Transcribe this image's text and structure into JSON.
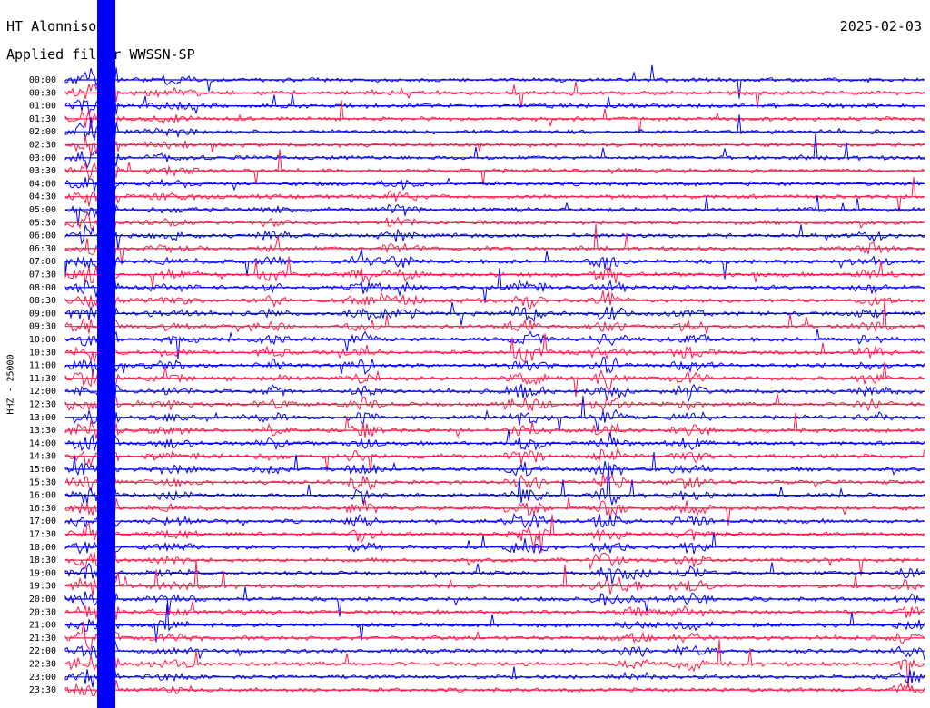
{
  "header": {
    "station": "HT Alonniso:",
    "date": "2025-02-03",
    "filter": "Applied filter WWSSN-SP"
  },
  "colors": {
    "blue": "#0000ff",
    "red": "#ff1a4a",
    "background": "#ffffff"
  },
  "chart_data": {
    "type": "line",
    "title": "HT Alonniso:",
    "ylabel": "HHZ - 25000",
    "tick_labels": [
      "00:00",
      "00:30",
      "01:00",
      "01:30",
      "02:00",
      "02:30",
      "03:00",
      "03:30",
      "04:00",
      "04:30",
      "05:00",
      "05:30",
      "06:00",
      "06:30",
      "07:00",
      "07:30",
      "08:00",
      "08:30",
      "09:00",
      "09:30",
      "10:00",
      "10:30",
      "11:00",
      "11:30",
      "12:00",
      "12:30",
      "13:00",
      "13:30",
      "14:00",
      "14:30",
      "15:00",
      "15:30",
      "16:00",
      "16:30",
      "17:00",
      "17:30",
      "18:00",
      "18:30",
      "19:00",
      "19:30",
      "20:00",
      "20:30",
      "21:00",
      "21:30",
      "22:00",
      "22:30",
      "23:00",
      "23:30"
    ],
    "line_colors": [
      "blue",
      "red"
    ],
    "grid": false
  }
}
